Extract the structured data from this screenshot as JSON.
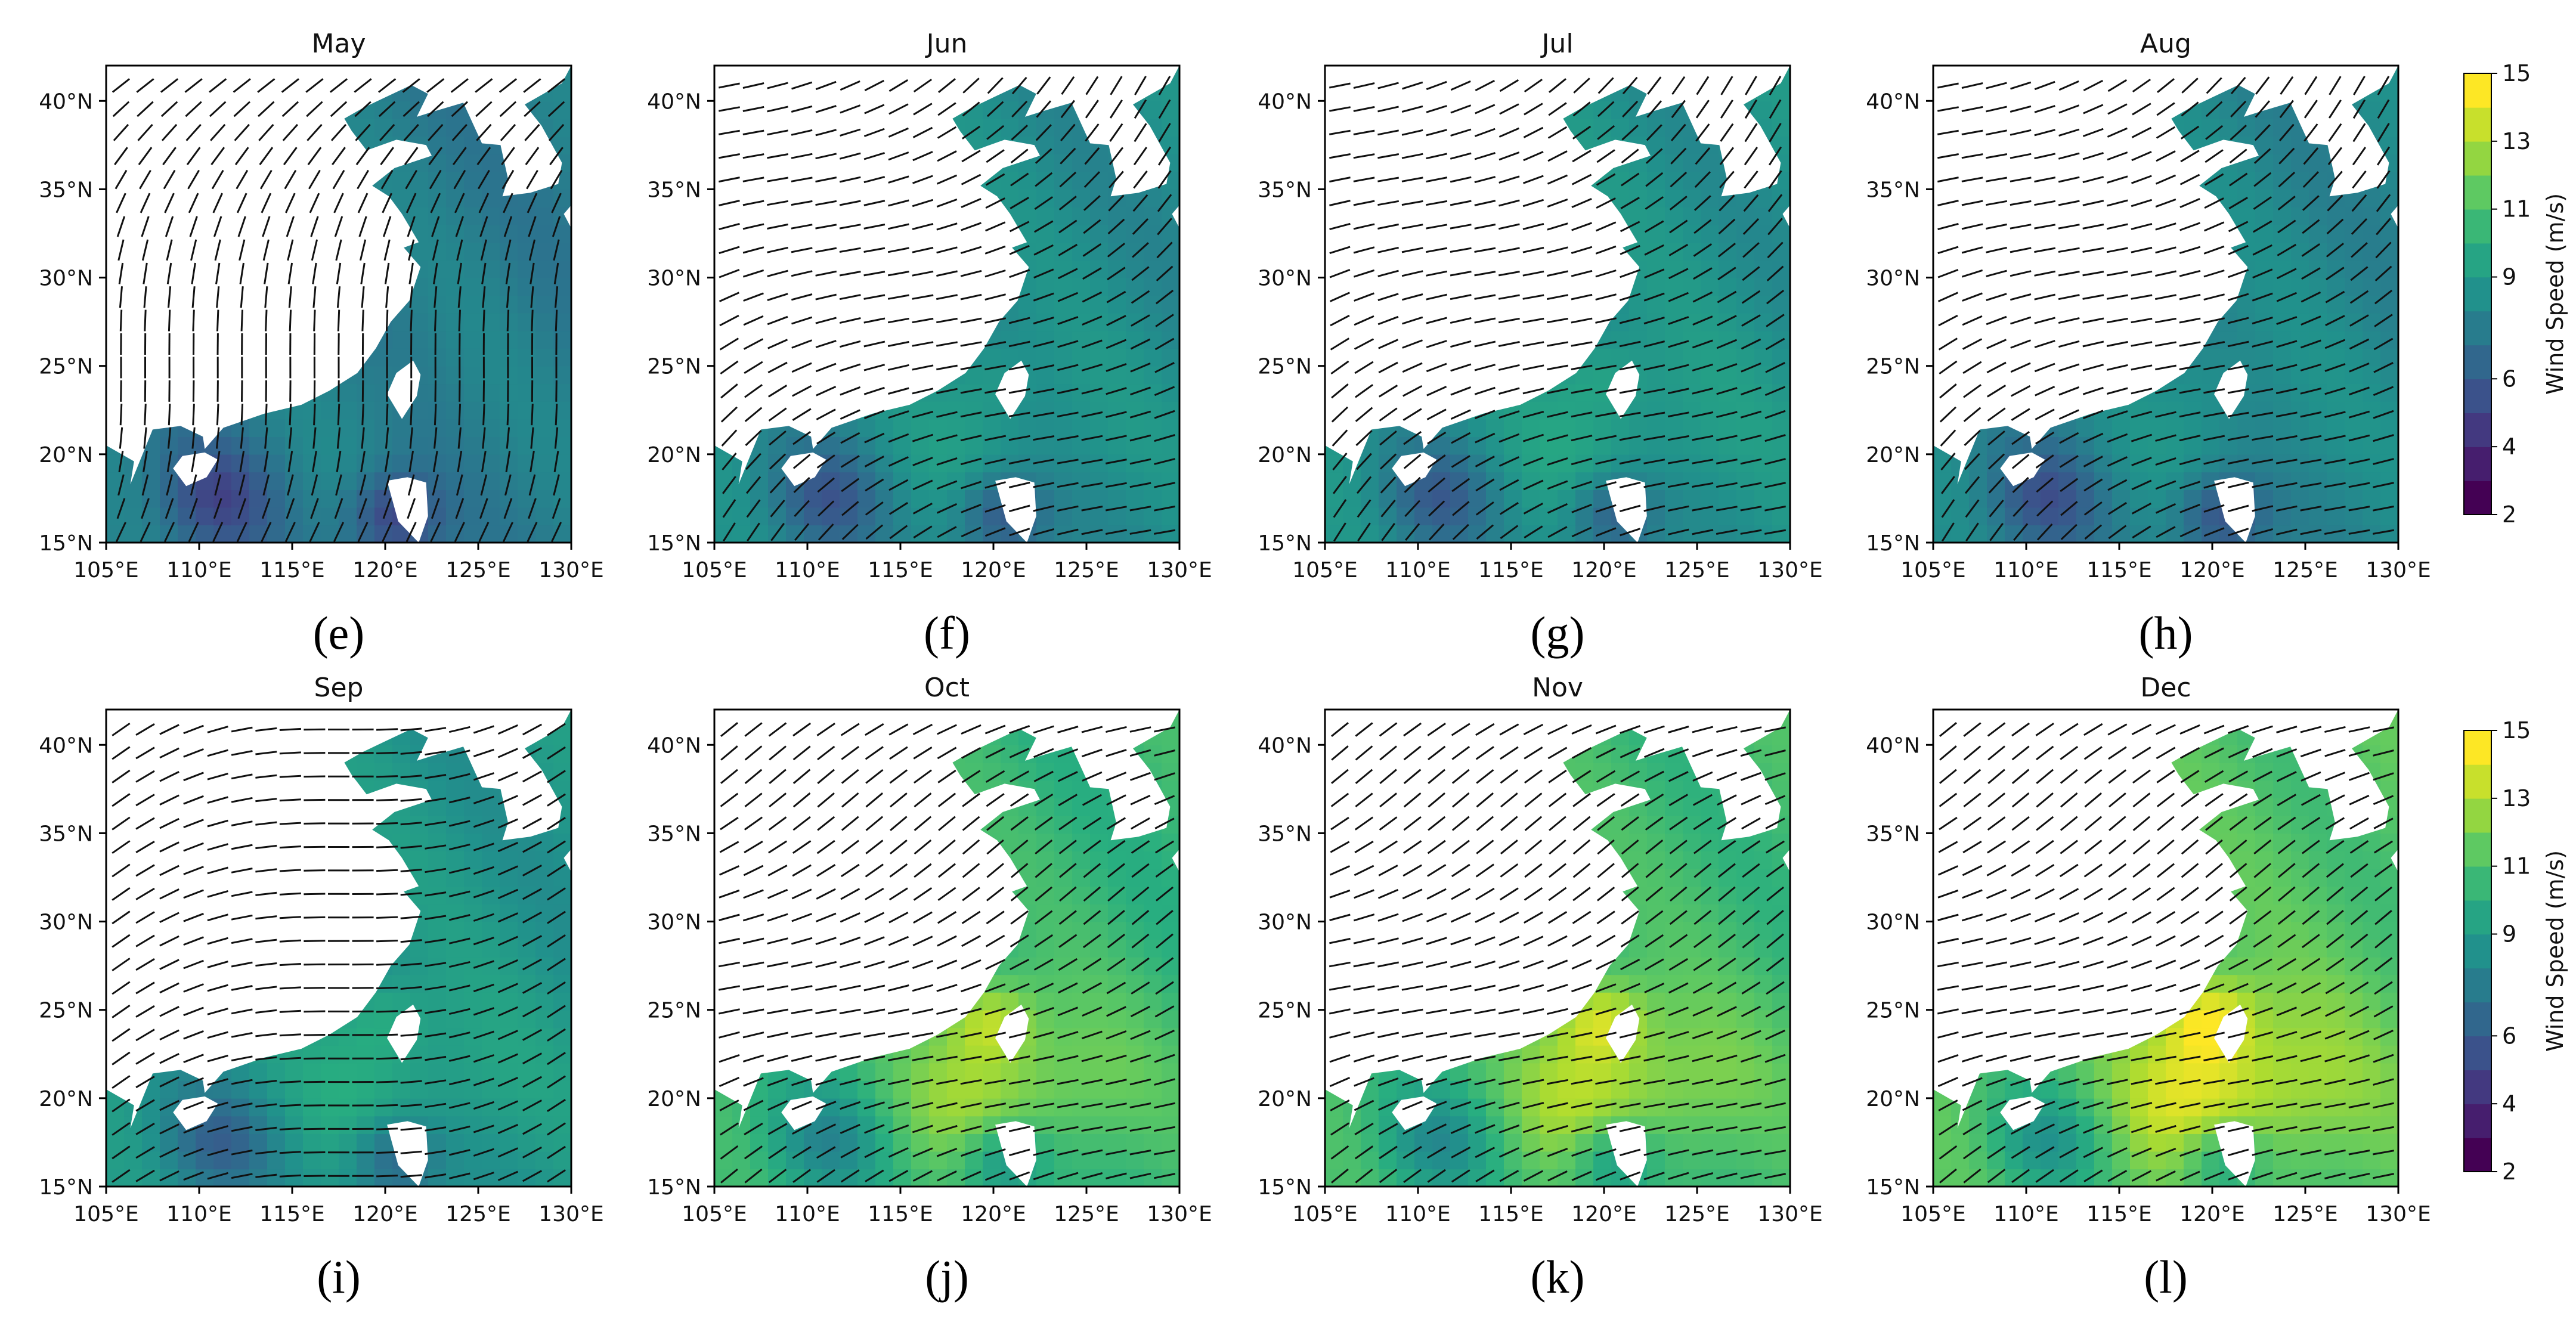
{
  "chart_data": {
    "type": "heatmap",
    "figure_kind": "grid of monthly mean wind-speed maps with wind-direction arrows",
    "panels": [
      {
        "label": "(e)",
        "title": "May",
        "shade": 0.42
      },
      {
        "label": "(f)",
        "title": "Jun",
        "shade": 0.48
      },
      {
        "label": "(g)",
        "title": "Jul",
        "shade": 0.5
      },
      {
        "label": "(h)",
        "title": "Aug",
        "shade": 0.46
      },
      {
        "label": "(i)",
        "title": "Sep",
        "shade": 0.52
      },
      {
        "label": "(j)",
        "title": "Oct",
        "shade": 0.66
      },
      {
        "label": "(k)",
        "title": "Nov",
        "shade": 0.68
      },
      {
        "label": "(l)",
        "title": "Dec",
        "shade": 0.72
      }
    ],
    "x_ticks": [
      "105°E",
      "110°E",
      "115°E",
      "120°E",
      "125°E",
      "130°E"
    ],
    "y_ticks": [
      "15°N",
      "20°N",
      "25°N",
      "30°N",
      "35°N",
      "40°N"
    ],
    "xlim": [
      105,
      130
    ],
    "ylim": [
      15,
      42
    ],
    "colorbar": {
      "label": "Wind Speed (m/s)",
      "ticks": [
        "2",
        "4",
        "6",
        "9",
        "11",
        "13",
        "15"
      ],
      "range": [
        2,
        15
      ],
      "colormap": [
        "#440154",
        "#472d7b",
        "#3b528b",
        "#2c728e",
        "#21918c",
        "#28ae80",
        "#5ec962",
        "#addc30",
        "#fde725"
      ]
    },
    "land_color": "#ffffff",
    "arrow_color": "#111111"
  }
}
